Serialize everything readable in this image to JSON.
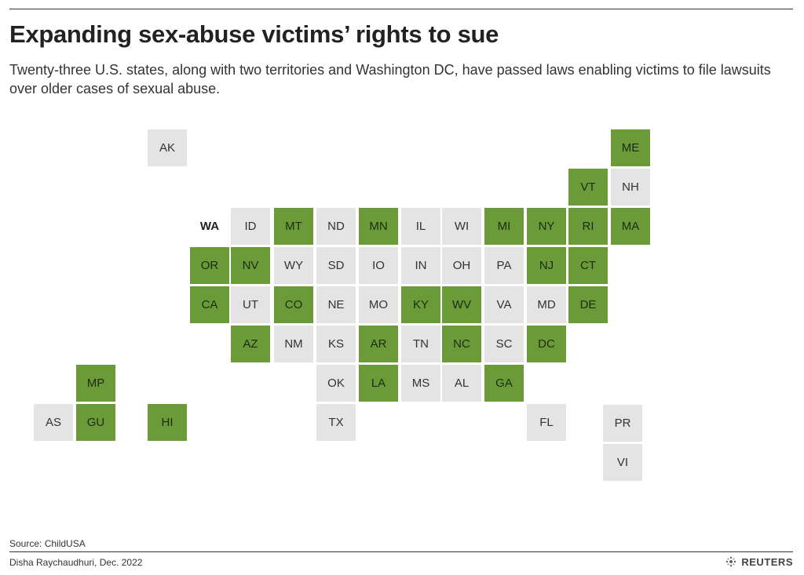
{
  "header": {
    "title": "Expanding sex-abuse victims’ rights to sue",
    "subtitle": "Twenty-three U.S. states, along with two territories and Washington DC, have passed laws enabling victims to file lawsuits over older cases of sexual abuse."
  },
  "colors": {
    "passed": "#6a9b38",
    "not_passed": "#e4e4e4"
  },
  "tiles": [
    {
      "abbr": "AK",
      "status": "not_passed"
    },
    {
      "abbr": "ME",
      "status": "passed"
    },
    {
      "abbr": "VT",
      "status": "passed"
    },
    {
      "abbr": "NH",
      "status": "not_passed"
    },
    {
      "abbr": "WA",
      "status": "none"
    },
    {
      "abbr": "ID",
      "status": "not_passed"
    },
    {
      "abbr": "MT",
      "status": "passed"
    },
    {
      "abbr": "ND",
      "status": "not_passed"
    },
    {
      "abbr": "MN",
      "status": "passed"
    },
    {
      "abbr": "IL",
      "status": "not_passed"
    },
    {
      "abbr": "WI",
      "status": "not_passed"
    },
    {
      "abbr": "MI",
      "status": "passed"
    },
    {
      "abbr": "NY",
      "status": "passed"
    },
    {
      "abbr": "RI",
      "status": "passed"
    },
    {
      "abbr": "MA",
      "status": "passed"
    },
    {
      "abbr": "OR",
      "status": "passed"
    },
    {
      "abbr": "NV",
      "status": "passed"
    },
    {
      "abbr": "WY",
      "status": "not_passed"
    },
    {
      "abbr": "SD",
      "status": "not_passed"
    },
    {
      "abbr": "IO",
      "status": "not_passed"
    },
    {
      "abbr": "IN",
      "status": "not_passed"
    },
    {
      "abbr": "OH",
      "status": "not_passed"
    },
    {
      "abbr": "PA",
      "status": "not_passed"
    },
    {
      "abbr": "NJ",
      "status": "passed"
    },
    {
      "abbr": "CT",
      "status": "passed"
    },
    {
      "abbr": "CA",
      "status": "passed"
    },
    {
      "abbr": "UT",
      "status": "not_passed"
    },
    {
      "abbr": "CO",
      "status": "passed"
    },
    {
      "abbr": "NE",
      "status": "not_passed"
    },
    {
      "abbr": "MO",
      "status": "not_passed"
    },
    {
      "abbr": "KY",
      "status": "passed"
    },
    {
      "abbr": "WV",
      "status": "passed"
    },
    {
      "abbr": "VA",
      "status": "not_passed"
    },
    {
      "abbr": "MD",
      "status": "not_passed"
    },
    {
      "abbr": "DE",
      "status": "passed"
    },
    {
      "abbr": "AZ",
      "status": "passed"
    },
    {
      "abbr": "NM",
      "status": "not_passed"
    },
    {
      "abbr": "KS",
      "status": "not_passed"
    },
    {
      "abbr": "AR",
      "status": "passed"
    },
    {
      "abbr": "TN",
      "status": "not_passed"
    },
    {
      "abbr": "NC",
      "status": "passed"
    },
    {
      "abbr": "SC",
      "status": "not_passed"
    },
    {
      "abbr": "DC",
      "status": "passed"
    },
    {
      "abbr": "MP",
      "status": "passed"
    },
    {
      "abbr": "OK",
      "status": "not_passed"
    },
    {
      "abbr": "LA",
      "status": "passed"
    },
    {
      "abbr": "MS",
      "status": "not_passed"
    },
    {
      "abbr": "AL",
      "status": "not_passed"
    },
    {
      "abbr": "GA",
      "status": "passed"
    },
    {
      "abbr": "AS",
      "status": "not_passed"
    },
    {
      "abbr": "GU",
      "status": "passed"
    },
    {
      "abbr": "HI",
      "status": "passed"
    },
    {
      "abbr": "TX",
      "status": "not_passed"
    },
    {
      "abbr": "FL",
      "status": "not_passed"
    },
    {
      "abbr": "PR",
      "status": "not_passed"
    },
    {
      "abbr": "VI",
      "status": "not_passed"
    }
  ],
  "footer": {
    "source": "Source: ChildUSA",
    "credit": "Disha Raychaudhuri, Dec. 2022",
    "brand": "REUTERS",
    "brand_icon": "reuters-logo-icon"
  }
}
